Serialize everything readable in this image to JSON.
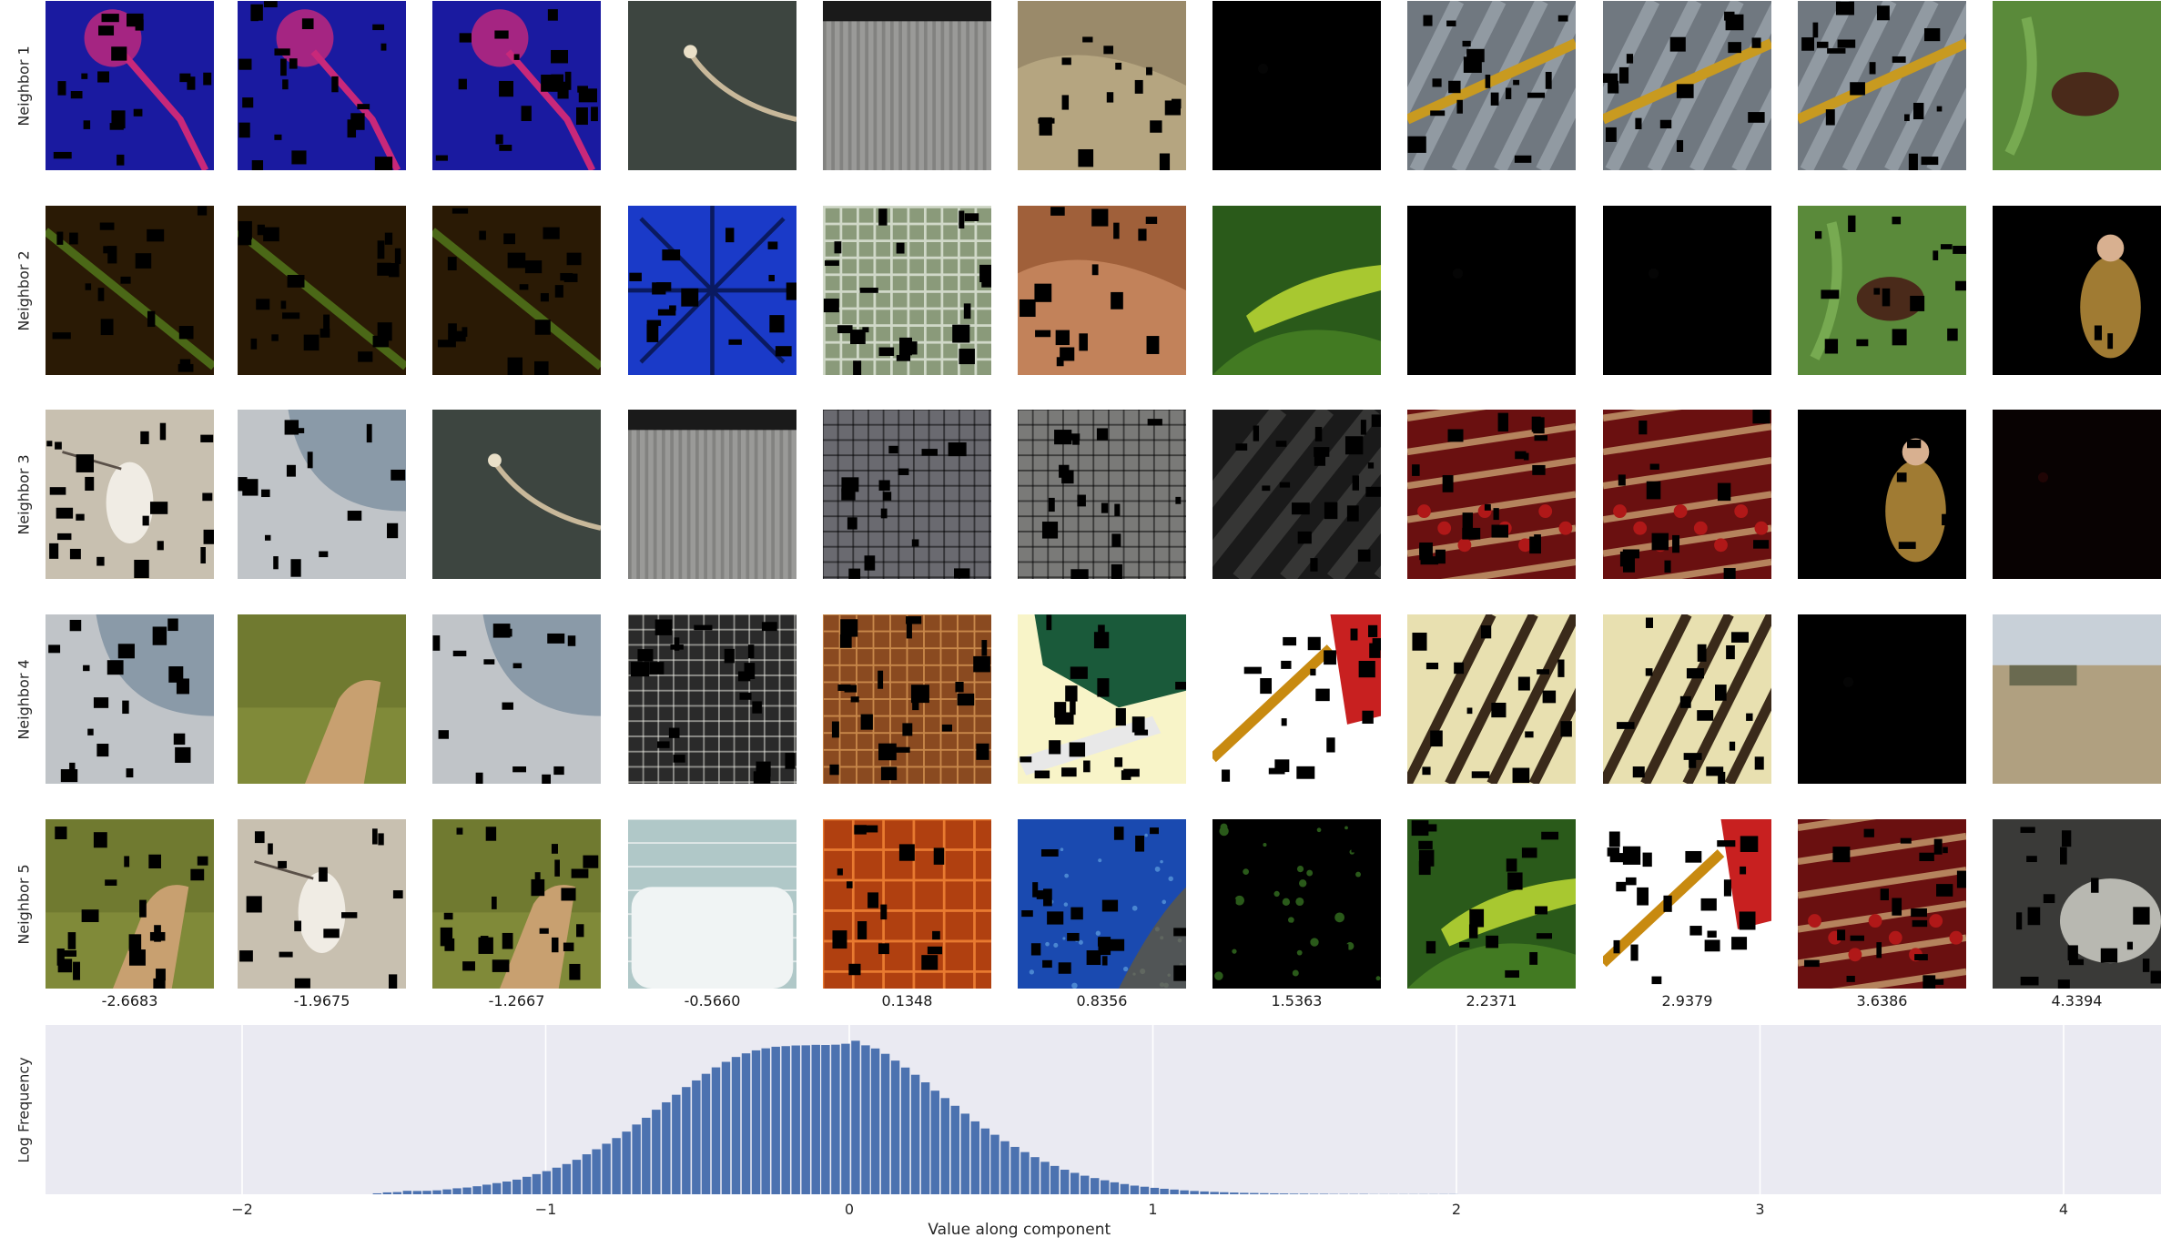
{
  "grid": {
    "row_labels": [
      "Neighbor 1",
      "Neighbor 2",
      "Neighbor 3",
      "Neighbor 4",
      "Neighbor 5"
    ],
    "column_values": [
      "-2.6683",
      "-1.9675",
      "-1.2667",
      "-0.5660",
      "0.1348",
      "0.8356",
      "1.5363",
      "2.2371",
      "2.9379",
      "3.6386",
      "4.3394"
    ],
    "thumbnails": [
      [
        {
          "scene": "microphone",
          "bg": "#1a1aa0",
          "fg": "#c8287a",
          "mask": true
        },
        {
          "scene": "microphone",
          "bg": "#1a1aa0",
          "fg": "#c8287a",
          "mask": true
        },
        {
          "scene": "microphone",
          "bg": "#1a1aa0",
          "fg": "#c8287a",
          "mask": true
        },
        {
          "scene": "root",
          "bg": "#3d4540",
          "fg": "#c8b89a",
          "mask": false
        },
        {
          "scene": "radiator",
          "bg": "#9a9a98",
          "fg": "#6a6a68",
          "mask": false
        },
        {
          "scene": "rock",
          "bg": "#9a8a6a",
          "fg": "#c8b890",
          "mask": true
        },
        {
          "scene": "dark",
          "bg": "#000000",
          "fg": "#050505",
          "mask": false
        },
        {
          "scene": "tool",
          "bg": "#707880",
          "fg": "#c89a20",
          "mask": true
        },
        {
          "scene": "tool",
          "bg": "#707880",
          "fg": "#c89a20",
          "mask": true
        },
        {
          "scene": "tool",
          "bg": "#707880",
          "fg": "#c89a20",
          "mask": true
        },
        {
          "scene": "beetle",
          "bg": "#5a8a3a",
          "fg": "#4a2a1a",
          "mask": false
        }
      ],
      [
        {
          "scene": "streak",
          "bg": "#2a1a05",
          "fg": "#5a8a20",
          "mask": true
        },
        {
          "scene": "streak",
          "bg": "#2a1a05",
          "fg": "#5a8a20",
          "mask": true
        },
        {
          "scene": "streak",
          "bg": "#2a1a05",
          "fg": "#5a8a20",
          "mask": true
        },
        {
          "scene": "umbrella",
          "bg": "#1a3ac8",
          "fg": "#0a1a60",
          "mask": true
        },
        {
          "scene": "fence",
          "bg": "#8a9a7a",
          "fg": "#d0d8c8",
          "mask": true
        },
        {
          "scene": "rock",
          "bg": "#a0603a",
          "fg": "#d89a70",
          "mask": true
        },
        {
          "scene": "lizard",
          "bg": "#2a5a1a",
          "fg": "#a8c830",
          "mask": false
        },
        {
          "scene": "dark",
          "bg": "#000000",
          "fg": "#050505",
          "mask": false
        },
        {
          "scene": "dark",
          "bg": "#000000",
          "fg": "#050505",
          "mask": false
        },
        {
          "scene": "beetle",
          "bg": "#5a8a3a",
          "fg": "#4a2a1a",
          "mask": true
        },
        {
          "scene": "person",
          "bg": "#000000",
          "fg": "#c89a40",
          "mask": true
        }
      ],
      [
        {
          "scene": "bird",
          "bg": "#c8c0b0",
          "fg": "#f0ece4",
          "mask": true
        },
        {
          "scene": "arch",
          "bg": "#8a9aa8",
          "fg": "#c0c4c8",
          "mask": true
        },
        {
          "scene": "root",
          "bg": "#3d4540",
          "fg": "#c8b89a",
          "mask": false
        },
        {
          "scene": "radiator",
          "bg": "#9a9a98",
          "fg": "#6a6a68",
          "mask": false
        },
        {
          "scene": "mesh",
          "bg": "#6a6a70",
          "fg": "#000000",
          "mask": true
        },
        {
          "scene": "mesh",
          "bg": "#7a7a78",
          "fg": "#000000",
          "mask": true
        },
        {
          "scene": "diagonal",
          "bg": "#1a1a1a",
          "fg": "#4a4a48",
          "mask": true
        },
        {
          "scene": "stripes",
          "bg": "#6a1010",
          "fg": "#c8a070",
          "mask": true
        },
        {
          "scene": "stripes",
          "bg": "#6a1010",
          "fg": "#c8a070",
          "mask": true
        },
        {
          "scene": "person",
          "bg": "#000000",
          "fg": "#c89a40",
          "mask": true
        },
        {
          "scene": "dark",
          "bg": "#080202",
          "fg": "#200505",
          "mask": false
        }
      ],
      [
        {
          "scene": "arch",
          "bg": "#8a9aa8",
          "fg": "#c0c4c8",
          "mask": true
        },
        {
          "scene": "hand",
          "bg": "#707a30",
          "fg": "#c8a070",
          "mask": false
        },
        {
          "scene": "arch",
          "bg": "#8a9aa8",
          "fg": "#c0c4c8",
          "mask": true
        },
        {
          "scene": "mesh",
          "bg": "#2a2a2a",
          "fg": "#f0f0e8",
          "mask": true
        },
        {
          "scene": "cabinet",
          "bg": "#8a4a20",
          "fg": "#c8884a",
          "mask": true
        },
        {
          "scene": "tabletop",
          "bg": "#f8f4c8",
          "fg": "#1a5a3a",
          "mask": true
        },
        {
          "scene": "axe",
          "bg": "#ffffff",
          "fg": "#c82020",
          "mask": true
        },
        {
          "scene": "knives",
          "bg": "#e8e0b0",
          "fg": "#3a2a1a",
          "mask": true
        },
        {
          "scene": "knives",
          "bg": "#e8e0b0",
          "fg": "#3a2a1a",
          "mask": true
        },
        {
          "scene": "dark",
          "bg": "#000000",
          "fg": "#050505",
          "mask": false
        },
        {
          "scene": "field",
          "bg": "#b0a080",
          "fg": "#6a6a50",
          "mask": false
        }
      ],
      [
        {
          "scene": "hand",
          "bg": "#707a30",
          "fg": "#c8a070",
          "mask": true
        },
        {
          "scene": "bird",
          "bg": "#c8c0b0",
          "fg": "#f0ece4",
          "mask": true
        },
        {
          "scene": "hand",
          "bg": "#707a30",
          "fg": "#c8a070",
          "mask": true
        },
        {
          "scene": "bathtub",
          "bg": "#b0c8c8",
          "fg": "#f0f4f4",
          "mask": false
        },
        {
          "scene": "tiles",
          "bg": "#b04010",
          "fg": "#e87a30",
          "mask": true
        },
        {
          "scene": "underwater",
          "bg": "#1a4ab0",
          "fg": "#60a0e0",
          "mask": true
        },
        {
          "scene": "specks",
          "bg": "#000000",
          "fg": "#2a5a1a",
          "mask": true
        },
        {
          "scene": "lizard",
          "bg": "#2a5a1a",
          "fg": "#a8c830",
          "mask": true
        },
        {
          "scene": "axe",
          "bg": "#ffffff",
          "fg": "#c82020",
          "mask": true
        },
        {
          "scene": "stripes",
          "bg": "#6a1010",
          "fg": "#c8a070",
          "mask": true
        },
        {
          "scene": "frog",
          "bg": "#3a3a38",
          "fg": "#d8d8d0",
          "mask": true
        }
      ]
    ]
  },
  "chart_data": {
    "type": "bar",
    "xlabel": "Value along component",
    "ylabel": "Log Frequency",
    "xlim": [
      -2.68,
      4.5
    ],
    "xticks": [
      -2,
      -1,
      0,
      1,
      2,
      3,
      4
    ],
    "xtick_labels": [
      "−2",
      "−1",
      "0",
      "1",
      "2",
      "3",
      "4"
    ],
    "grid": true,
    "background": "#eaeaf2",
    "bar_color": "#4c72b0",
    "bin_width": 0.0328,
    "x": [
      -1.553,
      -1.52,
      -1.487,
      -1.454,
      -1.421,
      -1.389,
      -1.356,
      -1.323,
      -1.29,
      -1.257,
      -1.224,
      -1.192,
      -1.159,
      -1.126,
      -1.093,
      -1.06,
      -1.028,
      -0.995,
      -0.962,
      -0.929,
      -0.896,
      -0.863,
      -0.831,
      -0.798,
      -0.765,
      -0.732,
      -0.699,
      -0.667,
      -0.634,
      -0.601,
      -0.568,
      -0.535,
      -0.502,
      -0.47,
      -0.437,
      -0.404,
      -0.371,
      -0.338,
      -0.305,
      -0.273,
      -0.24,
      -0.207,
      -0.174,
      -0.141,
      -0.108,
      -0.076,
      -0.043,
      -0.01,
      0.023,
      0.056,
      0.088,
      0.121,
      0.154,
      0.187,
      0.22,
      0.253,
      0.285,
      0.318,
      0.351,
      0.384,
      0.417,
      0.45,
      0.482,
      0.515,
      0.548,
      0.581,
      0.614,
      0.647,
      0.679,
      0.712,
      0.745,
      0.778,
      0.811,
      0.844,
      0.876,
      0.909,
      0.942,
      0.975,
      1.008,
      1.04,
      1.073,
      1.106,
      1.139,
      1.172,
      1.205,
      1.237,
      1.27,
      1.303,
      1.336,
      1.369,
      1.402,
      1.434,
      1.467,
      1.5,
      1.533,
      1.566,
      1.598,
      1.631,
      1.664,
      1.697,
      1.73,
      1.763,
      1.795,
      1.828,
      1.861,
      1.894,
      1.927,
      1.96,
      1.992
    ],
    "y": [
      0.6,
      1.2,
      1.4,
      2.2,
      2.1,
      2.2,
      2.5,
      3.1,
      3.8,
      4.3,
      5.1,
      6.1,
      7.1,
      8.1,
      9.3,
      11.1,
      12.8,
      14.7,
      16.9,
      19.2,
      21.9,
      25.4,
      28.6,
      32.1,
      35.7,
      39.8,
      44.3,
      48.6,
      53.7,
      58.4,
      63.2,
      68.1,
      72.3,
      76.5,
      80.6,
      84.1,
      87.2,
      89.5,
      91.4,
      92.7,
      93.7,
      94.1,
      94.5,
      94.6,
      94.9,
      94.8,
      95.0,
      95.6,
      97.5,
      94.6,
      92.6,
      89.2,
      84.9,
      80.5,
      75.9,
      71.1,
      65.8,
      61.1,
      56.2,
      51.2,
      46.3,
      41.8,
      37.8,
      33.7,
      30.1,
      26.8,
      23.6,
      20.6,
      18.0,
      15.6,
      13.6,
      11.8,
      10.3,
      8.9,
      7.6,
      6.5,
      5.5,
      4.8,
      4.1,
      3.5,
      3.0,
      2.5,
      2.1,
      1.8,
      1.5,
      1.3,
      1.1,
      0.9,
      0.8,
      0.7,
      0.6,
      0.5,
      0.4,
      0.4,
      0.3,
      0.3,
      0.2,
      0.2,
      0.2,
      0.2,
      0.1,
      0.1,
      0.1,
      0.1,
      0.1,
      0.1,
      0.1,
      0.1,
      0.1
    ]
  }
}
